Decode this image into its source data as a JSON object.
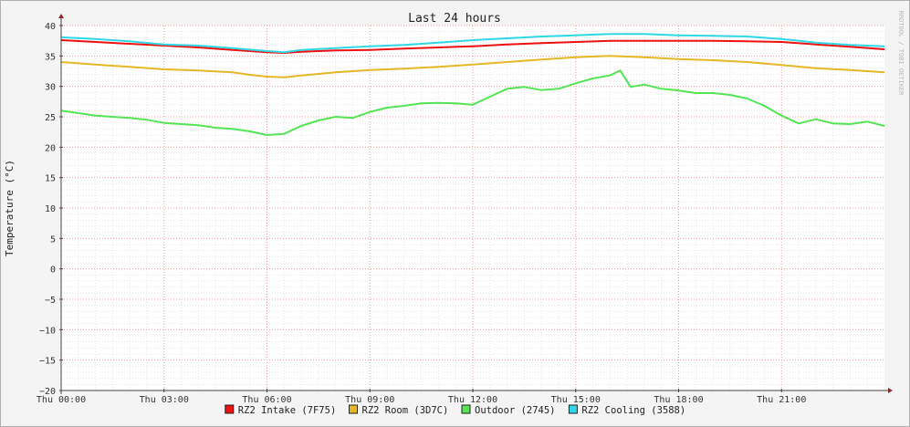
{
  "watermark": "RRDTOOL / TOBI OETIKER",
  "chart_data": {
    "type": "line",
    "title": "Last 24 hours",
    "xlabel": "",
    "ylabel": "Temperature (°C)",
    "xlim": [
      0,
      24
    ],
    "ylim": [
      -20,
      40
    ],
    "y_ticks": [
      -20,
      -15,
      -10,
      -5,
      0,
      5,
      10,
      15,
      20,
      25,
      30,
      35,
      40
    ],
    "x_ticks": [
      {
        "x": 0,
        "label": "Thu 00:00"
      },
      {
        "x": 3,
        "label": "Thu 03:00"
      },
      {
        "x": 6,
        "label": "Thu 06:00"
      },
      {
        "x": 9,
        "label": "Thu 09:00"
      },
      {
        "x": 12,
        "label": "Thu 12:00"
      },
      {
        "x": 15,
        "label": "Thu 15:00"
      },
      {
        "x": 18,
        "label": "Thu 18:00"
      },
      {
        "x": 21,
        "label": "Thu 21:00"
      }
    ],
    "grid": true,
    "legend_position": "bottom",
    "x_unit": "hours",
    "series": [
      {
        "name": "RZ2 Intake (7F75)",
        "color": "#ee1111",
        "x": [
          0,
          1,
          2,
          3,
          4,
          5,
          6,
          6.5,
          7,
          8,
          9,
          10,
          11,
          12,
          13,
          14,
          15,
          16,
          17,
          18,
          19,
          20,
          21,
          22,
          23,
          24
        ],
        "values": [
          37.6,
          37.3,
          37.0,
          36.7,
          36.4,
          36.0,
          35.6,
          35.5,
          35.7,
          35.9,
          36.0,
          36.2,
          36.4,
          36.6,
          36.9,
          37.1,
          37.3,
          37.5,
          37.5,
          37.5,
          37.5,
          37.4,
          37.3,
          36.9,
          36.5,
          36.1
        ]
      },
      {
        "name": "RZ2 Room (3D7C)",
        "color": "#e4b827",
        "x": [
          0,
          1,
          2,
          3,
          4,
          5,
          5.5,
          6,
          6.5,
          7,
          8,
          9,
          10,
          11,
          12,
          13,
          14,
          15,
          16,
          17,
          18,
          19,
          20,
          21,
          22,
          23,
          24
        ],
        "values": [
          34.0,
          33.6,
          33.2,
          32.8,
          32.6,
          32.3,
          31.9,
          31.6,
          31.5,
          31.8,
          32.3,
          32.7,
          32.9,
          33.2,
          33.6,
          34.0,
          34.4,
          34.8,
          35.0,
          34.8,
          34.5,
          34.3,
          34.0,
          33.5,
          33.0,
          32.7,
          32.3
        ]
      },
      {
        "name": "Outdoor (2745)",
        "color": "#54e454",
        "x": [
          0,
          0.5,
          1,
          1.5,
          2,
          2.5,
          3,
          3.5,
          4,
          4.5,
          5,
          5.5,
          6,
          6.5,
          7,
          7.5,
          8,
          8.5,
          9,
          9.5,
          10,
          10.5,
          11,
          11.5,
          12,
          12.5,
          13,
          13.5,
          14,
          14.5,
          15,
          15.5,
          16,
          16.3,
          16.6,
          17,
          17.5,
          18,
          18.5,
          19,
          19.5,
          20,
          20.5,
          21,
          21.5,
          22,
          22.5,
          23,
          23.5,
          24
        ],
        "values": [
          26.0,
          25.6,
          25.2,
          25.0,
          24.8,
          24.5,
          24.0,
          23.8,
          23.6,
          23.2,
          23.0,
          22.6,
          22.0,
          22.2,
          23.5,
          24.4,
          25.0,
          24.8,
          25.8,
          26.5,
          26.8,
          27.2,
          27.3,
          27.2,
          27.0,
          28.3,
          29.6,
          29.9,
          29.4,
          29.6,
          30.5,
          31.3,
          31.8,
          32.6,
          29.9,
          30.3,
          29.6,
          29.3,
          28.9,
          28.9,
          28.6,
          28.0,
          26.8,
          25.2,
          23.9,
          24.6,
          23.9,
          23.8,
          24.2,
          23.5
        ]
      },
      {
        "name": "RZ2 Cooling (3588)",
        "color": "#30d8e6",
        "x": [
          0,
          1,
          2,
          3,
          4,
          5,
          6,
          6.5,
          7,
          8,
          9,
          10,
          11,
          12,
          13,
          14,
          15,
          16,
          17,
          18,
          19,
          20,
          21,
          22,
          23,
          24
        ],
        "values": [
          38.1,
          37.8,
          37.4,
          36.9,
          36.7,
          36.3,
          35.8,
          35.6,
          36.0,
          36.3,
          36.6,
          36.8,
          37.2,
          37.6,
          37.9,
          38.2,
          38.4,
          38.6,
          38.6,
          38.4,
          38.3,
          38.2,
          37.8,
          37.2,
          36.8,
          36.6
        ]
      }
    ]
  }
}
